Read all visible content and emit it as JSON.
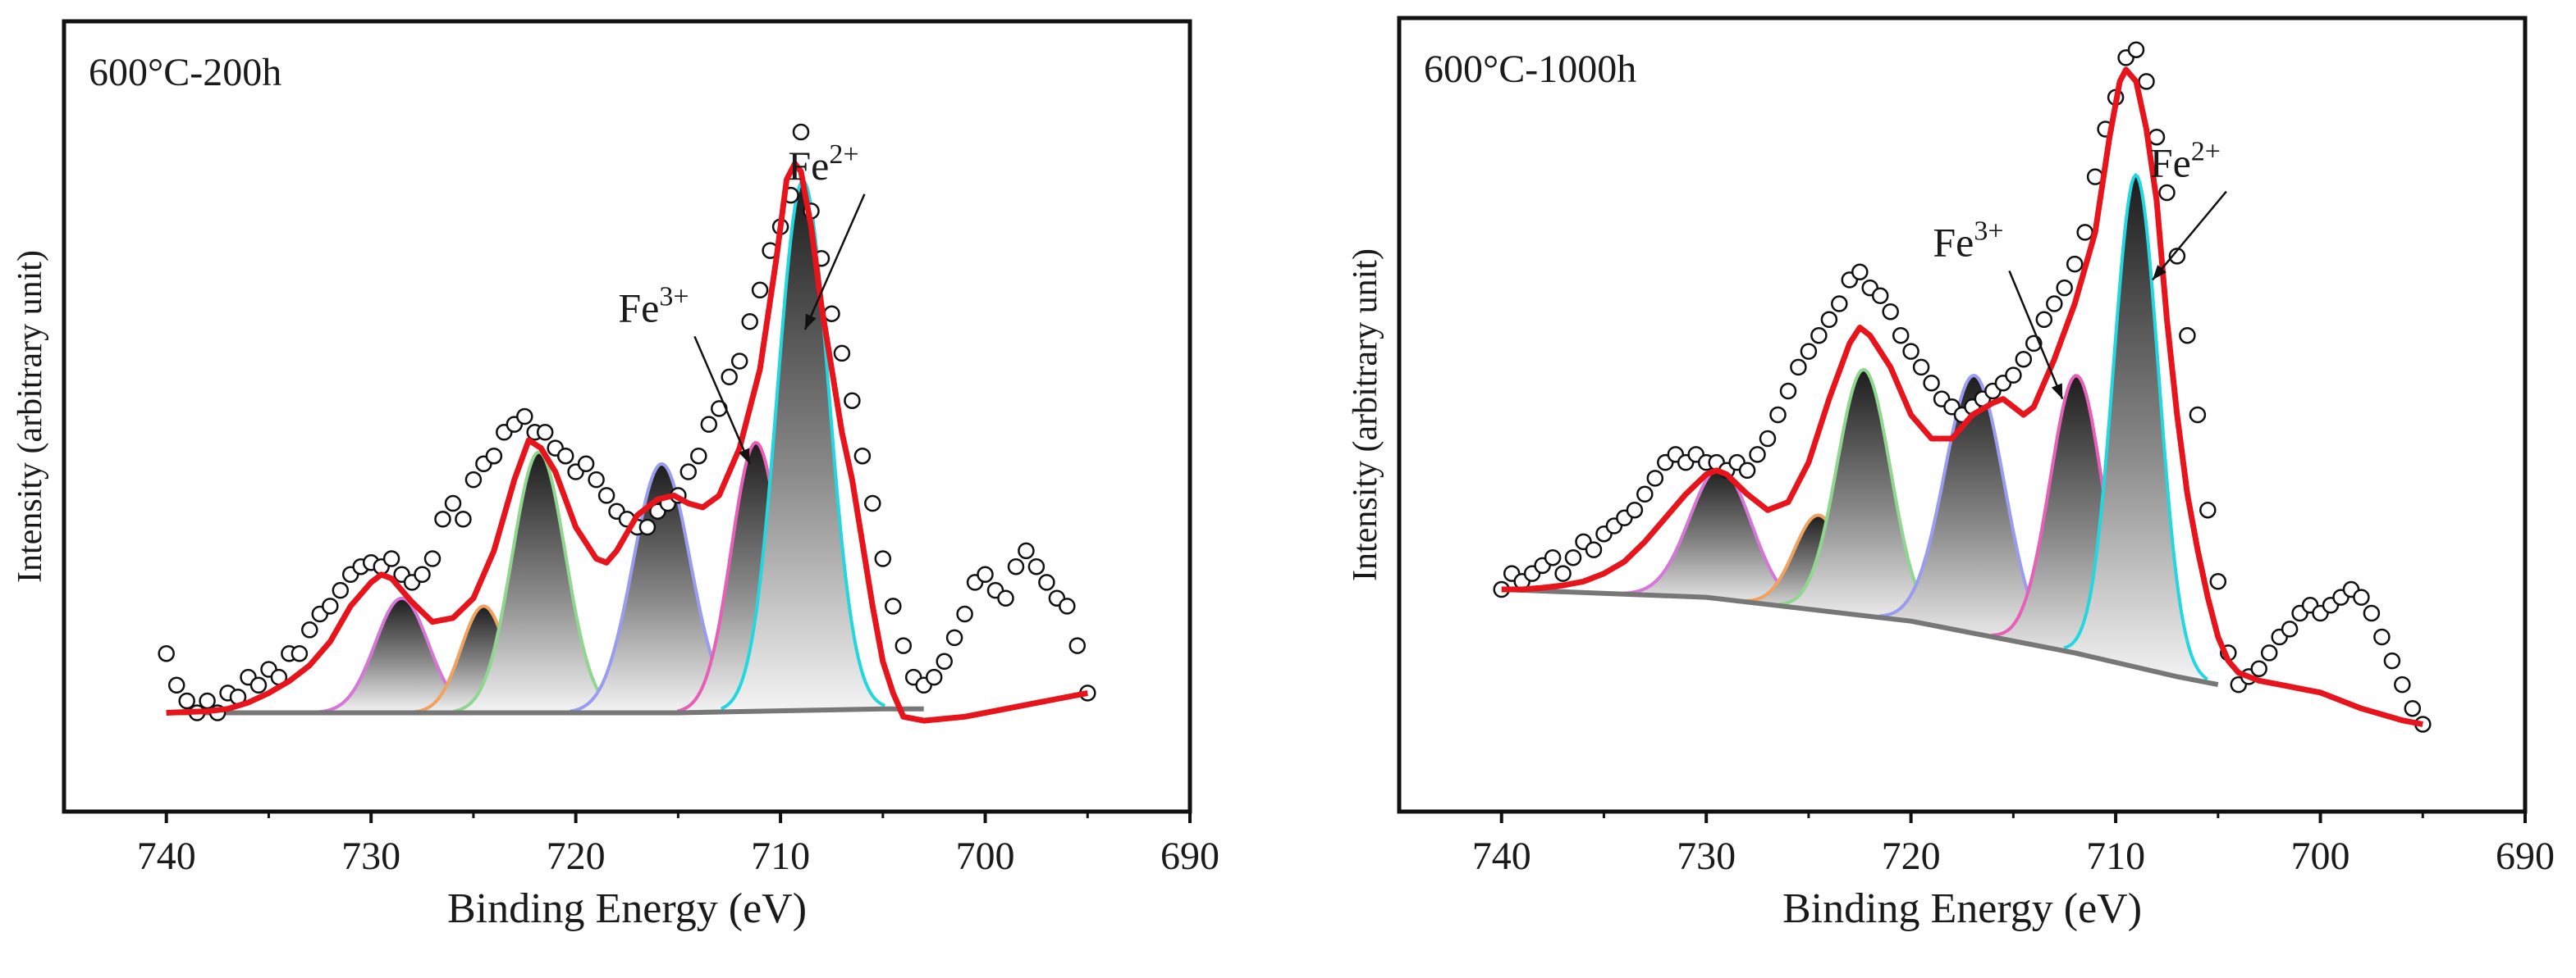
{
  "chart_data": [
    {
      "type": "line",
      "panel_title": "600°C-200h",
      "xlabel": "Binding Energy (eV)",
      "ylabel": "Intensity (arbitrary unit)",
      "xlim": [
        745,
        690
      ],
      "ylim": [
        0,
        1.0
      ],
      "xticks": [
        740,
        730,
        720,
        710,
        700,
        690
      ],
      "annotations": [
        {
          "base": "Fe",
          "sup": "3+",
          "label_x": 715.8,
          "label_y": 0.62,
          "arrow_to_x": 711.5,
          "arrow_to_y": 0.44
        },
        {
          "base": "Fe",
          "sup": "2+",
          "label_x": 707.5,
          "label_y": 0.8,
          "arrow_to_x": 708.8,
          "arrow_to_y": 0.61
        }
      ],
      "baseline": [
        [
          740,
          0.125
        ],
        [
          715,
          0.125
        ],
        [
          705,
          0.13
        ],
        [
          703,
          0.13
        ]
      ],
      "peaks": [
        {
          "center": 728.5,
          "amplitude": 0.145,
          "sigma": 1.3,
          "color": "#d676d6"
        },
        {
          "center": 724.5,
          "amplitude": 0.135,
          "sigma": 1.1,
          "color": "#f0a25e"
        },
        {
          "center": 721.8,
          "amplitude": 0.33,
          "sigma": 1.3,
          "color": "#8fd68f"
        },
        {
          "center": 715.8,
          "amplitude": 0.315,
          "sigma": 1.4,
          "color": "#9a9cf0"
        },
        {
          "center": 711.2,
          "amplitude": 0.34,
          "sigma": 1.2,
          "color": "#e85fb8"
        },
        {
          "center": 708.9,
          "amplitude": 0.67,
          "sigma": 1.25,
          "color": "#22d7de"
        }
      ],
      "envelope": [
        [
          740,
          0.125
        ],
        [
          739,
          0.126
        ],
        [
          738,
          0.127
        ],
        [
          737,
          0.13
        ],
        [
          736,
          0.138
        ],
        [
          735,
          0.15
        ],
        [
          734,
          0.165
        ],
        [
          733,
          0.185
        ],
        [
          732,
          0.215
        ],
        [
          731,
          0.26
        ],
        [
          730,
          0.29
        ],
        [
          729.5,
          0.3
        ],
        [
          729,
          0.295
        ],
        [
          728,
          0.265
        ],
        [
          727,
          0.24
        ],
        [
          726,
          0.245
        ],
        [
          725,
          0.27
        ],
        [
          724,
          0.33
        ],
        [
          723,
          0.42
        ],
        [
          722.3,
          0.47
        ],
        [
          721.7,
          0.46
        ],
        [
          721,
          0.43
        ],
        [
          720,
          0.36
        ],
        [
          719,
          0.32
        ],
        [
          718.5,
          0.315
        ],
        [
          718,
          0.33
        ],
        [
          717,
          0.375
        ],
        [
          716,
          0.395
        ],
        [
          715.2,
          0.4
        ],
        [
          714.5,
          0.39
        ],
        [
          713.8,
          0.385
        ],
        [
          713,
          0.4
        ],
        [
          712,
          0.46
        ],
        [
          711,
          0.56
        ],
        [
          710.2,
          0.7
        ],
        [
          709.7,
          0.8
        ],
        [
          709.3,
          0.82
        ],
        [
          709,
          0.81
        ],
        [
          708.5,
          0.74
        ],
        [
          708,
          0.64
        ],
        [
          707.5,
          0.56
        ],
        [
          707,
          0.48
        ],
        [
          706.5,
          0.42
        ],
        [
          706,
          0.34
        ],
        [
          705.5,
          0.26
        ],
        [
          705,
          0.19
        ],
        [
          704.5,
          0.15
        ],
        [
          704,
          0.12
        ],
        [
          703,
          0.115
        ],
        [
          701,
          0.12
        ],
        [
          699,
          0.13
        ],
        [
          697,
          0.14
        ],
        [
          695,
          0.15
        ]
      ],
      "scatter": [
        [
          740,
          0.2
        ],
        [
          739.5,
          0.16
        ],
        [
          739,
          0.14
        ],
        [
          738.5,
          0.125
        ],
        [
          738,
          0.14
        ],
        [
          737.5,
          0.125
        ],
        [
          737,
          0.15
        ],
        [
          736.5,
          0.145
        ],
        [
          736,
          0.17
        ],
        [
          735.5,
          0.16
        ],
        [
          735,
          0.18
        ],
        [
          734.5,
          0.17
        ],
        [
          734,
          0.2
        ],
        [
          733.5,
          0.2
        ],
        [
          733,
          0.23
        ],
        [
          732.5,
          0.25
        ],
        [
          732,
          0.26
        ],
        [
          731.5,
          0.28
        ],
        [
          731,
          0.3
        ],
        [
          730.5,
          0.31
        ],
        [
          730,
          0.315
        ],
        [
          729.5,
          0.31
        ],
        [
          729,
          0.32
        ],
        [
          728.5,
          0.3
        ],
        [
          728,
          0.29
        ],
        [
          727.5,
          0.3
        ],
        [
          727,
          0.32
        ],
        [
          726.5,
          0.37
        ],
        [
          726,
          0.39
        ],
        [
          725.5,
          0.37
        ],
        [
          725,
          0.42
        ],
        [
          724.5,
          0.44
        ],
        [
          724,
          0.45
        ],
        [
          723.5,
          0.48
        ],
        [
          723,
          0.49
        ],
        [
          722.5,
          0.5
        ],
        [
          722,
          0.48
        ],
        [
          721.5,
          0.48
        ],
        [
          721,
          0.46
        ],
        [
          720.5,
          0.45
        ],
        [
          720,
          0.43
        ],
        [
          719.5,
          0.44
        ],
        [
          719,
          0.42
        ],
        [
          718.5,
          0.4
        ],
        [
          718,
          0.38
        ],
        [
          717.5,
          0.37
        ],
        [
          717,
          0.36
        ],
        [
          716.5,
          0.36
        ],
        [
          716,
          0.38
        ],
        [
          715.5,
          0.39
        ],
        [
          715,
          0.4
        ],
        [
          714.5,
          0.43
        ],
        [
          714,
          0.45
        ],
        [
          713.5,
          0.49
        ],
        [
          713,
          0.51
        ],
        [
          712.5,
          0.55
        ],
        [
          712,
          0.57
        ],
        [
          711.5,
          0.62
        ],
        [
          711,
          0.66
        ],
        [
          710.5,
          0.71
        ],
        [
          710,
          0.74
        ],
        [
          709.5,
          0.78
        ],
        [
          709,
          0.86
        ],
        [
          708.5,
          0.76
        ],
        [
          708,
          0.7
        ],
        [
          707.5,
          0.63
        ],
        [
          707,
          0.58
        ],
        [
          706.5,
          0.52
        ],
        [
          706,
          0.45
        ],
        [
          705.5,
          0.39
        ],
        [
          705,
          0.32
        ],
        [
          704.5,
          0.26
        ],
        [
          704,
          0.21
        ],
        [
          703.5,
          0.17
        ],
        [
          703,
          0.16
        ],
        [
          702.5,
          0.17
        ],
        [
          702,
          0.19
        ],
        [
          701.5,
          0.22
        ],
        [
          701,
          0.25
        ],
        [
          700.5,
          0.29
        ],
        [
          700,
          0.3
        ],
        [
          699.5,
          0.28
        ],
        [
          699,
          0.27
        ],
        [
          698.5,
          0.31
        ],
        [
          698,
          0.33
        ],
        [
          697.5,
          0.31
        ],
        [
          697,
          0.29
        ],
        [
          696.5,
          0.27
        ],
        [
          696,
          0.26
        ],
        [
          695.5,
          0.21
        ],
        [
          695,
          0.15
        ]
      ]
    },
    {
      "type": "line",
      "panel_title": "600°C-1000h",
      "xlabel": "Binding Energy (eV)",
      "ylabel": "Intensity (arbitrary unit)",
      "xlim": [
        745,
        690
      ],
      "ylim": [
        0,
        1.0
      ],
      "xticks": [
        740,
        730,
        720,
        710,
        700,
        690
      ],
      "annotations": [
        {
          "base": "Fe",
          "sup": "3+",
          "label_x": 716.8,
          "label_y": 0.7,
          "arrow_to_x": 712.6,
          "arrow_to_y": 0.52
        },
        {
          "base": "Fe",
          "sup": "2+",
          "label_x": 706.2,
          "label_y": 0.8,
          "arrow_to_x": 708.2,
          "arrow_to_y": 0.67
        }
      ],
      "baseline": [
        [
          740,
          0.28
        ],
        [
          730,
          0.27
        ],
        [
          720,
          0.24
        ],
        [
          712,
          0.2
        ],
        [
          707,
          0.17
        ],
        [
          705,
          0.16
        ]
      ],
      "peaks": [
        {
          "center": 729.3,
          "amplitude": 0.165,
          "sigma": 1.5,
          "color": "#d676d6"
        },
        {
          "center": 724.5,
          "amplitude": 0.12,
          "sigma": 1.2,
          "color": "#f0a25e"
        },
        {
          "center": 722.3,
          "amplitude": 0.31,
          "sigma": 1.3,
          "color": "#8fd68f"
        },
        {
          "center": 716.9,
          "amplitude": 0.325,
          "sigma": 1.45,
          "color": "#9a9cf0"
        },
        {
          "center": 711.9,
          "amplitude": 0.35,
          "sigma": 1.3,
          "color": "#e85fb8"
        },
        {
          "center": 709.0,
          "amplitude": 0.62,
          "sigma": 1.1,
          "color": "#22d7de"
        }
      ],
      "envelope": [
        [
          740,
          0.28
        ],
        [
          739,
          0.28
        ],
        [
          738,
          0.282
        ],
        [
          737,
          0.285
        ],
        [
          736,
          0.29
        ],
        [
          735,
          0.3
        ],
        [
          734,
          0.315
        ],
        [
          733,
          0.34
        ],
        [
          732,
          0.37
        ],
        [
          731,
          0.4
        ],
        [
          730,
          0.425
        ],
        [
          729.5,
          0.43
        ],
        [
          729,
          0.425
        ],
        [
          728,
          0.4
        ],
        [
          727,
          0.38
        ],
        [
          726,
          0.39
        ],
        [
          725,
          0.44
        ],
        [
          724,
          0.52
        ],
        [
          723,
          0.59
        ],
        [
          722.5,
          0.61
        ],
        [
          722,
          0.6
        ],
        [
          721,
          0.56
        ],
        [
          720,
          0.5
        ],
        [
          719,
          0.47
        ],
        [
          718,
          0.47
        ],
        [
          717,
          0.5
        ],
        [
          716,
          0.515
        ],
        [
          715.5,
          0.52
        ],
        [
          715,
          0.51
        ],
        [
          714.5,
          0.5
        ],
        [
          714,
          0.51
        ],
        [
          713,
          0.57
        ],
        [
          712,
          0.64
        ],
        [
          711,
          0.73
        ],
        [
          710.3,
          0.85
        ],
        [
          709.8,
          0.92
        ],
        [
          709.5,
          0.935
        ],
        [
          709,
          0.92
        ],
        [
          708.5,
          0.86
        ],
        [
          708,
          0.77
        ],
        [
          707.5,
          0.62
        ],
        [
          707,
          0.5
        ],
        [
          706.5,
          0.4
        ],
        [
          706,
          0.33
        ],
        [
          705.5,
          0.27
        ],
        [
          705,
          0.22
        ],
        [
          704.5,
          0.19
        ],
        [
          704,
          0.175
        ],
        [
          703,
          0.165
        ],
        [
          702,
          0.16
        ],
        [
          700,
          0.15
        ],
        [
          698,
          0.13
        ],
        [
          696,
          0.115
        ],
        [
          695,
          0.11
        ]
      ],
      "scatter": [
        [
          740,
          0.28
        ],
        [
          739.5,
          0.3
        ],
        [
          739,
          0.29
        ],
        [
          738.5,
          0.3
        ],
        [
          738,
          0.31
        ],
        [
          737.5,
          0.32
        ],
        [
          737,
          0.3
        ],
        [
          736.5,
          0.32
        ],
        [
          736,
          0.34
        ],
        [
          735.5,
          0.33
        ],
        [
          735,
          0.35
        ],
        [
          734.5,
          0.36
        ],
        [
          734,
          0.37
        ],
        [
          733.5,
          0.38
        ],
        [
          733,
          0.4
        ],
        [
          732.5,
          0.42
        ],
        [
          732,
          0.44
        ],
        [
          731.5,
          0.45
        ],
        [
          731,
          0.44
        ],
        [
          730.5,
          0.45
        ],
        [
          730,
          0.44
        ],
        [
          729.5,
          0.44
        ],
        [
          729,
          0.43
        ],
        [
          728.5,
          0.44
        ],
        [
          728,
          0.43
        ],
        [
          727.5,
          0.45
        ],
        [
          727,
          0.47
        ],
        [
          726.5,
          0.5
        ],
        [
          726,
          0.53
        ],
        [
          725.5,
          0.56
        ],
        [
          725,
          0.58
        ],
        [
          724.5,
          0.6
        ],
        [
          724,
          0.62
        ],
        [
          723.5,
          0.64
        ],
        [
          723,
          0.67
        ],
        [
          722.5,
          0.68
        ],
        [
          722,
          0.66
        ],
        [
          721.5,
          0.65
        ],
        [
          721,
          0.63
        ],
        [
          720.5,
          0.6
        ],
        [
          720,
          0.58
        ],
        [
          719.5,
          0.56
        ],
        [
          719,
          0.54
        ],
        [
          718.5,
          0.52
        ],
        [
          718,
          0.51
        ],
        [
          717.5,
          0.5
        ],
        [
          717,
          0.51
        ],
        [
          716.5,
          0.52
        ],
        [
          716,
          0.53
        ],
        [
          715.5,
          0.54
        ],
        [
          715,
          0.55
        ],
        [
          714.5,
          0.57
        ],
        [
          714,
          0.59
        ],
        [
          713.5,
          0.62
        ],
        [
          713,
          0.64
        ],
        [
          712.5,
          0.66
        ],
        [
          712,
          0.69
        ],
        [
          711.5,
          0.73
        ],
        [
          711,
          0.8
        ],
        [
          710.5,
          0.86
        ],
        [
          710,
          0.9
        ],
        [
          709.5,
          0.95
        ],
        [
          709,
          0.96
        ],
        [
          708.5,
          0.92
        ],
        [
          708,
          0.85
        ],
        [
          707.5,
          0.78
        ],
        [
          707,
          0.7
        ],
        [
          706.5,
          0.6
        ],
        [
          706,
          0.5
        ],
        [
          705.5,
          0.38
        ],
        [
          705,
          0.29
        ],
        [
          704.5,
          0.2
        ],
        [
          704,
          0.16
        ],
        [
          703.5,
          0.17
        ],
        [
          703,
          0.18
        ],
        [
          702.5,
          0.2
        ],
        [
          702,
          0.22
        ],
        [
          701.5,
          0.23
        ],
        [
          701,
          0.25
        ],
        [
          700.5,
          0.26
        ],
        [
          700,
          0.25
        ],
        [
          699.5,
          0.26
        ],
        [
          699,
          0.27
        ],
        [
          698.5,
          0.28
        ],
        [
          698,
          0.27
        ],
        [
          697.5,
          0.25
        ],
        [
          697,
          0.22
        ],
        [
          696.5,
          0.19
        ],
        [
          696,
          0.16
        ],
        [
          695.5,
          0.13
        ],
        [
          695,
          0.11
        ]
      ]
    }
  ]
}
